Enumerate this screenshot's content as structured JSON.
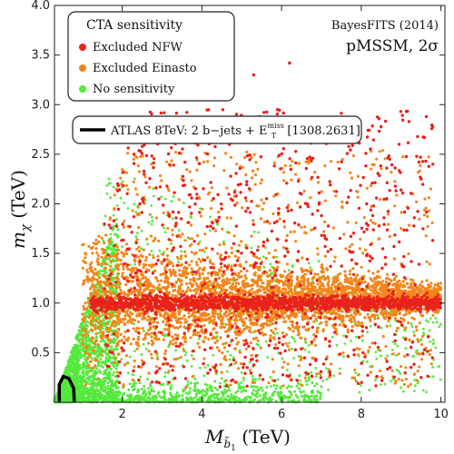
{
  "chart_data": {
    "type": "scatter",
    "title": "",
    "xlabel": "M_b̃1 (TeV)",
    "ylabel": "m_χ (TeV)",
    "xlim": [
      0.3,
      10.1
    ],
    "ylim": [
      0,
      4
    ],
    "xticks": [
      "2",
      "4",
      "6",
      "8",
      "10"
    ],
    "xtick_values": [
      2,
      4,
      6,
      8,
      10
    ],
    "yticks": [
      "0.5",
      "1.0",
      "1.5",
      "2.0",
      "2.5",
      "3.0",
      "3.5",
      "4.0"
    ],
    "ytick_values": [
      0.5,
      1.0,
      1.5,
      2.0,
      2.5,
      3.0,
      3.5,
      4.0
    ],
    "grid": false,
    "legend_title": "CTA sensitivity",
    "legend_position": "top-left",
    "series": [
      {
        "name": "Excluded NFW",
        "color": "#e8221c"
      },
      {
        "name": "Excluded Einasto",
        "color": "#f3861b"
      },
      {
        "name": "No sensitivity",
        "color": "#55e93c"
      }
    ],
    "density_regions": [
      {
        "series": "No sensitivity",
        "description": "diagonal wedge",
        "x_range": [
          0.3,
          1.9
        ],
        "y_range": [
          0.0,
          1.95
        ]
      },
      {
        "series": "No sensitivity",
        "description": "low-mass band",
        "x_range": [
          0.5,
          7.0
        ],
        "y_range": [
          0.0,
          0.3
        ]
      },
      {
        "series": "Excluded Einasto",
        "description": "horizontal band",
        "x_range": [
          1.0,
          10.0
        ],
        "y_range": [
          0.85,
          1.4
        ]
      },
      {
        "series": "Excluded NFW",
        "description": "horizontal band",
        "x_range": [
          1.0,
          10.0
        ],
        "y_range": [
          0.93,
          1.08
        ]
      },
      {
        "series": "Mixed",
        "description": "sparse scatter",
        "x_range": [
          1.8,
          10.0
        ],
        "y_range": [
          0.1,
          3.4
        ]
      }
    ],
    "atlas_limit": {
      "label": "ATLAS 8TeV: 2 b−jets + E",
      "label_sup": "miss",
      "label_sub": "T",
      "label_tail": " [1308.2631]",
      "color": "#000000",
      "curve": [
        [
          0.42,
          0.0
        ],
        [
          0.42,
          0.18
        ],
        [
          0.52,
          0.26
        ],
        [
          0.66,
          0.24
        ],
        [
          0.78,
          0.14
        ],
        [
          0.8,
          0.0
        ]
      ]
    }
  },
  "annotations": {
    "group": "BayesFITS (2014)",
    "model": "pMSSM, 2σ"
  }
}
